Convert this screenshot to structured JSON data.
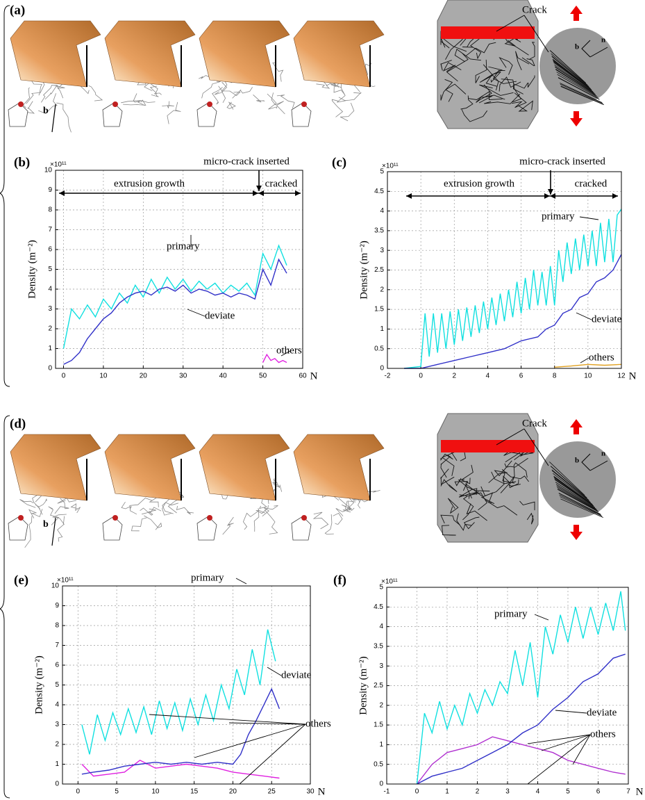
{
  "panels": [
    {
      "label": "(a)",
      "crack": "Crack",
      "burgers": "b",
      "normal": "n"
    },
    {
      "label": "(d)",
      "crack": "Crack",
      "burgers": "b",
      "normal": "n"
    }
  ],
  "chart_data": [
    {
      "type": "line",
      "panel": "(b)",
      "exponent": "×10¹¹",
      "ylabel": "Density (m⁻²)",
      "xlabel": "N",
      "xlim": [
        -2,
        60
      ],
      "xticks": [
        0,
        10,
        20,
        30,
        40,
        50,
        60
      ],
      "ylim": [
        0,
        10
      ],
      "yticks": [
        0,
        1,
        2,
        3,
        4,
        5,
        6,
        7,
        8,
        9,
        10
      ],
      "grid": true,
      "annotations": [
        "micro-crack inserted",
        "extrusion growth",
        "cracked"
      ],
      "series": [
        {
          "name": "primary",
          "color": "#10e0e0",
          "x": [
            0,
            2,
            4,
            6,
            8,
            10,
            12,
            14,
            16,
            18,
            20,
            22,
            24,
            26,
            28,
            30,
            32,
            34,
            36,
            38,
            40,
            42,
            44,
            46,
            48,
            50,
            52,
            54,
            56
          ],
          "values": [
            1,
            3,
            2.5,
            3.2,
            2.6,
            3.5,
            3,
            3.8,
            3.3,
            4.2,
            3.6,
            4.5,
            3.8,
            4.6,
            4,
            4.5,
            3.9,
            4.4,
            4,
            4.3,
            3.8,
            4.2,
            3.9,
            4.3,
            3.7,
            5.8,
            5,
            6.2,
            5.2
          ]
        },
        {
          "name": "deviate",
          "color": "#3030c8",
          "x": [
            0,
            2,
            4,
            6,
            8,
            10,
            12,
            14,
            16,
            18,
            20,
            22,
            24,
            26,
            28,
            30,
            32,
            34,
            36,
            38,
            40,
            42,
            44,
            46,
            48,
            50,
            52,
            54,
            56
          ],
          "values": [
            0.2,
            0.4,
            0.8,
            1.5,
            2,
            2.5,
            2.8,
            3.3,
            3.6,
            3.8,
            3.9,
            3.7,
            4,
            4.1,
            3.9,
            4.2,
            3.8,
            4,
            3.9,
            3.7,
            3.8,
            3.6,
            3.8,
            3.7,
            3.5,
            5,
            4.2,
            5.5,
            4.8
          ]
        },
        {
          "name": "others",
          "color": "#e020e0",
          "x": [
            50,
            51,
            52,
            53,
            54,
            55,
            56
          ],
          "values": [
            0.3,
            0.7,
            0.4,
            0.5,
            0.3,
            0.4,
            0.3
          ]
        }
      ]
    },
    {
      "type": "line",
      "panel": "(c)",
      "exponent": "×10¹¹",
      "ylabel": "Density (m⁻²)",
      "xlabel": "N",
      "xlim": [
        -2,
        12
      ],
      "xticks": [
        -2,
        0,
        2,
        4,
        6,
        8,
        10,
        12
      ],
      "ylim": [
        0,
        5
      ],
      "yticks": [
        0,
        0.5,
        1,
        1.5,
        2,
        2.5,
        3,
        3.5,
        4,
        4.5,
        5
      ],
      "grid": true,
      "annotations": [
        "micro-crack inserted",
        "extrusion growth",
        "cracked"
      ],
      "series": [
        {
          "name": "primary",
          "color": "#10e0e0",
          "x": [
            -1,
            0,
            0.25,
            0.5,
            0.75,
            1,
            1.25,
            1.5,
            1.75,
            2,
            2.25,
            2.5,
            2.75,
            3,
            3.25,
            3.5,
            3.75,
            4,
            4.25,
            4.5,
            4.75,
            5,
            5.25,
            5.5,
            5.75,
            6,
            6.25,
            6.5,
            6.75,
            7,
            7.25,
            7.5,
            7.75,
            8,
            8.25,
            8.5,
            8.75,
            9,
            9.25,
            9.5,
            9.75,
            10,
            10.25,
            10.5,
            10.75,
            11,
            11.25,
            11.5,
            11.75,
            12
          ],
          "values": [
            0,
            0.05,
            1.4,
            0.3,
            1.4,
            0.4,
            1.4,
            0.5,
            1.45,
            0.6,
            1.5,
            0.7,
            1.55,
            0.8,
            1.6,
            0.9,
            1.7,
            1.0,
            1.8,
            1.1,
            1.9,
            1.2,
            2.0,
            1.3,
            2.2,
            1.4,
            2.3,
            1.5,
            2.5,
            1.6,
            2.45,
            1.6,
            2.6,
            1.6,
            3.0,
            2.2,
            3.2,
            2.4,
            3.3,
            2.5,
            3.4,
            2.6,
            3.5,
            2.6,
            3.7,
            2.7,
            3.8,
            2.7,
            3.9,
            4.05
          ]
        },
        {
          "name": "deviate",
          "color": "#3030c8",
          "x": [
            -1,
            0,
            1,
            2,
            3,
            4,
            5,
            6,
            7,
            7.5,
            8,
            8.5,
            9,
            9.5,
            10,
            10.5,
            11,
            11.5,
            12
          ],
          "values": [
            0,
            0,
            0.1,
            0.2,
            0.3,
            0.4,
            0.5,
            0.7,
            0.8,
            1.0,
            1.1,
            1.4,
            1.5,
            1.8,
            1.9,
            2.2,
            2.3,
            2.5,
            2.9
          ]
        },
        {
          "name": "others",
          "color": "#e0a020",
          "x": [
            8,
            9,
            10,
            11,
            12
          ],
          "values": [
            0.03,
            0.06,
            0.1,
            0.08,
            0.1
          ]
        }
      ]
    },
    {
      "type": "line",
      "panel": "(e)",
      "exponent": "×10¹¹",
      "ylabel": "Density (m⁻²)",
      "xlabel": "N",
      "xlim": [
        -2,
        30
      ],
      "xticks": [
        0,
        5,
        10,
        15,
        20,
        25,
        30
      ],
      "ylim": [
        0,
        10
      ],
      "yticks": [
        0,
        1,
        2,
        3,
        4,
        5,
        6,
        7,
        8,
        9,
        10
      ],
      "grid": true,
      "annotations": [],
      "series": [
        {
          "name": "primary",
          "color": "#10e0e0",
          "x": [
            0.5,
            1.5,
            2.5,
            3.5,
            4.5,
            5.5,
            6.5,
            7.5,
            8.5,
            9.5,
            10.5,
            11.5,
            12.5,
            13.5,
            14.5,
            15.5,
            16.5,
            17.5,
            18.5,
            19.5,
            20.5,
            21.5,
            22.5,
            23.5,
            24.5,
            25.5
          ],
          "values": [
            3,
            1.5,
            3.5,
            2.2,
            3.6,
            2.5,
            3.8,
            2.6,
            3.9,
            2.5,
            4.2,
            2.8,
            4.1,
            2.7,
            4.3,
            3,
            4.5,
            3.2,
            5,
            3.8,
            5.8,
            4.5,
            6.8,
            5,
            7.8,
            6.2
          ]
        },
        {
          "name": "deviate",
          "color": "#3030c8",
          "x": [
            0.5,
            2,
            4,
            6,
            8,
            10,
            12,
            14,
            16,
            18,
            20,
            21,
            22,
            23,
            24,
            25,
            26
          ],
          "values": [
            0.5,
            0.6,
            0.7,
            0.9,
            1.0,
            1.1,
            1.0,
            1.1,
            1.0,
            1.1,
            1.0,
            1.5,
            2.5,
            3.2,
            4.0,
            4.8,
            3.8
          ]
        },
        {
          "name": "others",
          "color": "#e020e0",
          "x": [
            0.5,
            2,
            4,
            6,
            8,
            10,
            12,
            14,
            16,
            18,
            20,
            22,
            24,
            26
          ],
          "values": [
            1,
            0.4,
            0.5,
            0.6,
            1.2,
            0.8,
            0.9,
            1.0,
            0.9,
            0.8,
            0.6,
            0.5,
            0.4,
            0.3
          ]
        }
      ]
    },
    {
      "type": "line",
      "panel": "(f)",
      "exponent": "×10¹¹",
      "ylabel": "Density (m⁻²)",
      "xlabel": "N",
      "xlim": [
        -1,
        7
      ],
      "xticks": [
        -1,
        0,
        1,
        2,
        3,
        4,
        5,
        6,
        7
      ],
      "ylim": [
        0,
        5
      ],
      "yticks": [
        0,
        0.5,
        1,
        1.5,
        2,
        2.5,
        3,
        3.5,
        4,
        4.5,
        5
      ],
      "grid": true,
      "annotations": [],
      "series": [
        {
          "name": "primary",
          "color": "#10e0e0",
          "x": [
            0,
            0.25,
            0.5,
            0.75,
            1,
            1.25,
            1.5,
            1.75,
            2,
            2.25,
            2.5,
            2.75,
            3,
            3.25,
            3.5,
            3.75,
            4,
            4.25,
            4.5,
            4.75,
            5,
            5.25,
            5.5,
            5.75,
            6,
            6.25,
            6.5,
            6.75,
            6.9
          ],
          "values": [
            0,
            1.8,
            1.3,
            2.1,
            1.4,
            2.0,
            1.5,
            2.3,
            1.8,
            2.4,
            2.0,
            2.6,
            2.3,
            3.4,
            2.5,
            3.6,
            2.2,
            4.0,
            3.3,
            4.3,
            3.6,
            4.5,
            3.7,
            4.5,
            3.8,
            4.6,
            3.9,
            4.9,
            3.9
          ]
        },
        {
          "name": "deviate",
          "color": "#3030c8",
          "x": [
            0,
            0.5,
            1,
            1.5,
            2,
            2.5,
            3,
            3.5,
            4,
            4.5,
            5,
            5.5,
            6,
            6.5,
            6.9
          ],
          "values": [
            0,
            0.2,
            0.3,
            0.4,
            0.6,
            0.8,
            1.0,
            1.3,
            1.5,
            1.9,
            2.2,
            2.6,
            2.8,
            3.2,
            3.3
          ]
        },
        {
          "name": "others",
          "color": "#b030d0",
          "x": [
            0,
            0.5,
            1,
            1.5,
            2,
            2.5,
            3,
            3.5,
            4,
            4.5,
            5,
            5.5,
            6,
            6.5,
            6.9
          ],
          "values": [
            0,
            0.5,
            0.8,
            0.9,
            1.0,
            1.2,
            1.1,
            1.0,
            0.9,
            0.8,
            0.6,
            0.5,
            0.4,
            0.3,
            0.25
          ]
        }
      ]
    }
  ]
}
